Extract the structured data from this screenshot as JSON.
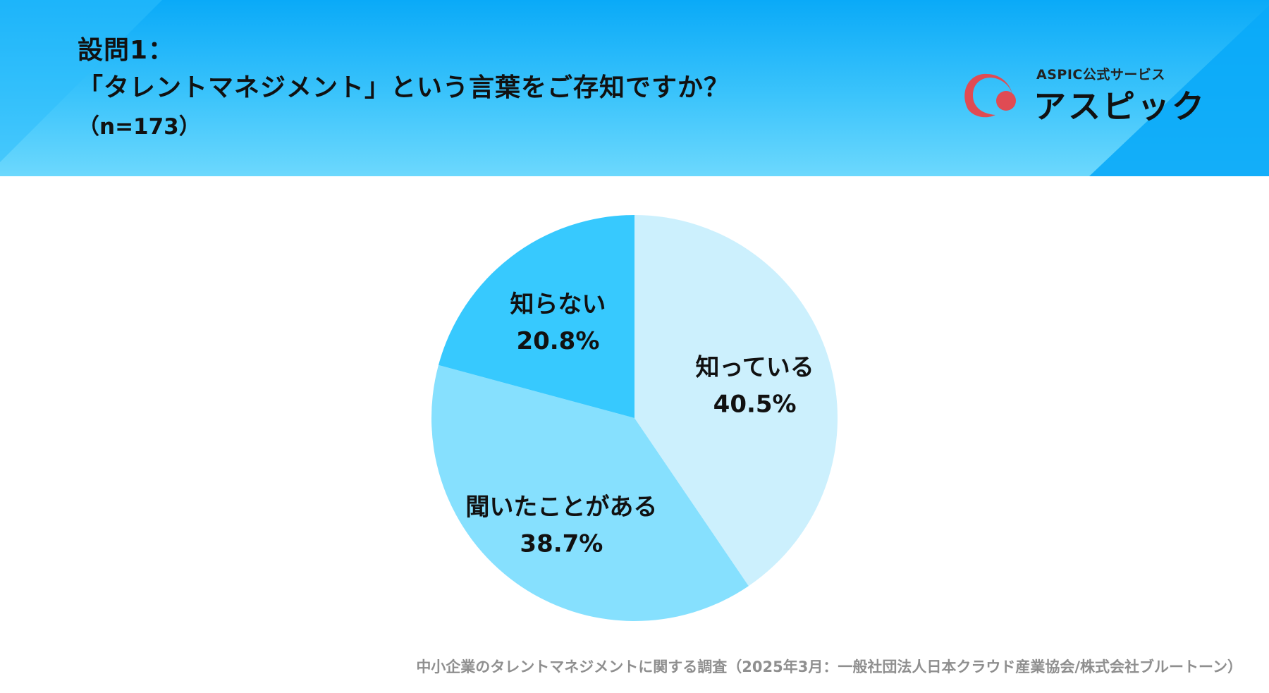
{
  "header": {
    "question_label": "設問1：",
    "question_text": "「タレントマネジメント」という言葉をご存知ですか？",
    "sample_size": "（n=173）"
  },
  "logo": {
    "subtitle": "ASPIC公式サービス",
    "name": "アスピック",
    "mark_color": "#e04b53",
    "mark_icon": "aspic-arc-dot-logo"
  },
  "chart_data": {
    "type": "pie",
    "title": "",
    "slices": [
      {
        "label": "知っている",
        "value": 40.5,
        "display": "40.5%",
        "color": "#ccf0fd"
      },
      {
        "label": "聞いたことがある",
        "value": 38.7,
        "display": "38.7%",
        "color": "#86e0fe"
      },
      {
        "label": "知らない",
        "value": 20.8,
        "display": "20.8%",
        "color": "#37c9fe"
      }
    ],
    "start_angle": "12 o'clock",
    "direction": "clockwise",
    "legend": "none",
    "labels": "inside slices"
  },
  "footer": {
    "source": "中小企業のタレントマネジメントに関する調査（2025年3月：一般社団法人日本クラウド産業協会/株式会社ブルートーン）"
  }
}
